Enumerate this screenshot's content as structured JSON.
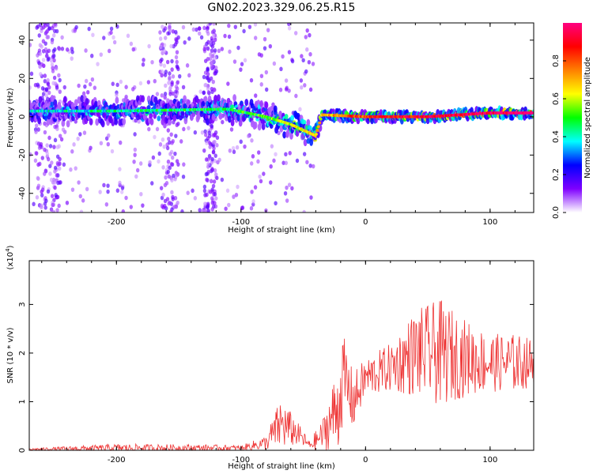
{
  "figure": {
    "title": "GN02.2023.329.06.25.R15"
  },
  "chart_data": [
    {
      "type": "heatmap",
      "name": "spectrogram",
      "xlabel": "Height of straight line (km)",
      "ylabel": "Frequency (Hz)",
      "xlim": [
        -270,
        135
      ],
      "ylim": [
        -50,
        49
      ],
      "xticks": [
        -200,
        -100,
        0,
        100
      ],
      "yticks": [
        -40,
        -20,
        0,
        20,
        40
      ],
      "colorbar": {
        "label": "Normalized spectral amplitude",
        "range": [
          0,
          1
        ],
        "ticks": [
          "0.0",
          "0.2",
          "0.4",
          "0.6",
          "0.8"
        ],
        "colormap": "rainbow",
        "colors": [
          "#ffffff",
          "#7f00ff",
          "#0000ff",
          "#00ffff",
          "#00ff00",
          "#ffff00",
          "#ff8000",
          "#ff0000",
          "#ff0080"
        ]
      },
      "ridge": {
        "description_points": [
          {
            "x": -270,
            "f": 3,
            "amp": 0.25
          },
          {
            "x": -200,
            "f": 3,
            "amp": 0.3
          },
          {
            "x": -110,
            "f": 4,
            "amp": 0.35
          },
          {
            "x": -80,
            "f": 0,
            "amp": 0.4
          },
          {
            "x": -60,
            "f": -4,
            "amp": 0.5
          },
          {
            "x": -40,
            "f": -10,
            "amp": 0.55
          },
          {
            "x": -35,
            "f": 1,
            "amp": 0.55
          },
          {
            "x": 0,
            "f": 0,
            "amp": 0.7
          },
          {
            "x": 50,
            "f": 0,
            "amp": 0.8
          },
          {
            "x": 100,
            "f": 2,
            "amp": 0.85
          },
          {
            "x": 135,
            "f": 2,
            "amp": 0.9
          }
        ],
        "scatter_bands_x": [
          [
            -265,
            -245
          ],
          [
            -165,
            -150
          ],
          [
            -130,
            -120
          ]
        ]
      }
    },
    {
      "type": "line",
      "name": "snr",
      "xlabel": "Height of straight line (km)",
      "ylabel": "SNR (10 * v/v)",
      "multiplier": "(x10",
      "multiplier_exp": "4",
      "multiplier_close": ")",
      "xlim": [
        -270,
        135
      ],
      "ylim": [
        0,
        3.9
      ],
      "xticks": [
        -200,
        -100,
        0,
        100
      ],
      "yticks": [
        0,
        1,
        2,
        3
      ],
      "color": "#ee3333",
      "envelope": [
        {
          "x": -270,
          "base": 0.02,
          "amp": 0.02
        },
        {
          "x": -200,
          "base": 0.05,
          "amp": 0.08
        },
        {
          "x": -130,
          "base": 0.05,
          "amp": 0.07
        },
        {
          "x": -100,
          "base": 0.05,
          "amp": 0.05
        },
        {
          "x": -80,
          "base": 0.15,
          "amp": 0.15
        },
        {
          "x": -68,
          "base": 0.55,
          "amp": 0.55
        },
        {
          "x": -55,
          "base": 0.35,
          "amp": 0.25
        },
        {
          "x": -45,
          "base": 0.1,
          "amp": 0.1
        },
        {
          "x": -35,
          "base": 0.3,
          "amp": 0.3
        },
        {
          "x": -22,
          "base": 0.9,
          "amp": 0.9
        },
        {
          "x": -18,
          "base": 1.5,
          "amp": 0.9
        },
        {
          "x": -10,
          "base": 1.0,
          "amp": 0.6
        },
        {
          "x": 0,
          "base": 1.5,
          "amp": 0.4
        },
        {
          "x": 20,
          "base": 1.7,
          "amp": 0.5
        },
        {
          "x": 40,
          "base": 2.0,
          "amp": 0.9
        },
        {
          "x": 60,
          "base": 2.0,
          "amp": 1.1
        },
        {
          "x": 80,
          "base": 1.9,
          "amp": 0.8
        },
        {
          "x": 100,
          "base": 1.8,
          "amp": 0.6
        },
        {
          "x": 120,
          "base": 1.8,
          "amp": 0.6
        },
        {
          "x": 135,
          "base": 1.8,
          "amp": 0.5
        }
      ]
    }
  ]
}
